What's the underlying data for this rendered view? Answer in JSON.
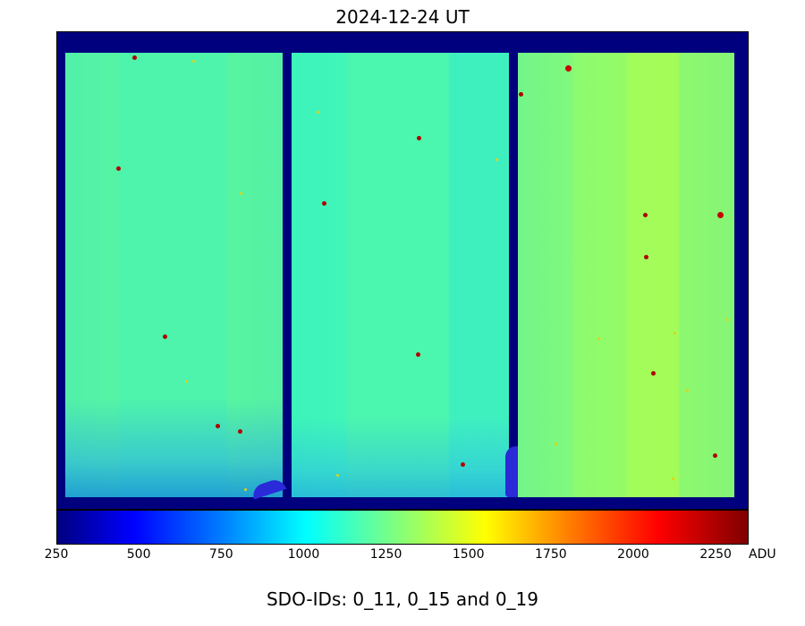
{
  "title": "2024-12-24 UT",
  "colorbar": {
    "colormap": "jet",
    "range": [
      250,
      2350
    ],
    "ticks": [
      "250",
      "500",
      "750",
      "1000",
      "1250",
      "1500",
      "1750",
      "2000",
      "2250"
    ],
    "tick_values": [
      250,
      500,
      750,
      1000,
      1250,
      1500,
      1750,
      2000,
      2250
    ],
    "unit": "ADU"
  },
  "caption": "SDO-IDs: 0_11, 0_15 and 0_19",
  "colors": {
    "background": "#00007f",
    "panel_left": "#4ef3ac",
    "panel_middle": "#4bf6ae",
    "panel_right": "#95fb66"
  }
}
